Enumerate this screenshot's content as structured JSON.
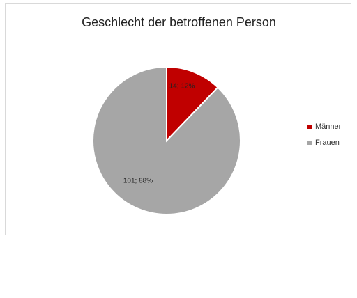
{
  "chart_data": {
    "type": "pie",
    "title": "Geschlecht der betroffenen Person",
    "legend_position": "right",
    "slices": [
      {
        "name": "Männer",
        "value": 14,
        "percent": "12%",
        "label": "14; 12%",
        "color": "#c00000"
      },
      {
        "name": "Frauen",
        "value": 101,
        "percent": "88%",
        "label": "101; 88%",
        "color": "#a6a6a6"
      }
    ]
  }
}
